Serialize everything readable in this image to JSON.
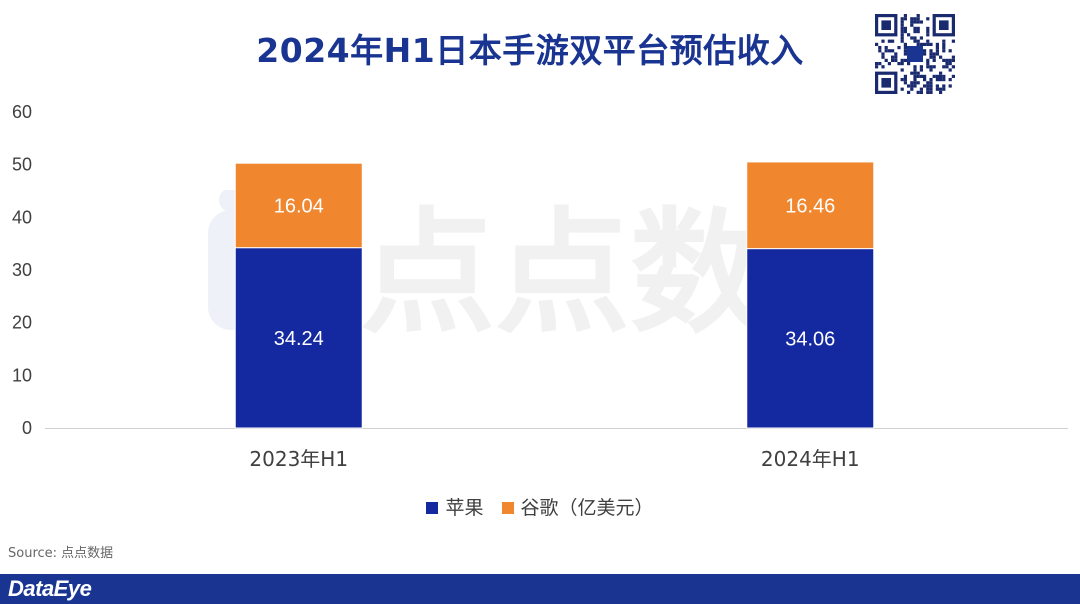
{
  "title": "2024年H1日本手游双平台预估收入",
  "source": "Source: 点点数据",
  "brand": "DataEye",
  "watermark_text": "点点数",
  "chart_data": {
    "type": "bar",
    "stacked": true,
    "categories": [
      "2023年H1",
      "2024年H1"
    ],
    "series": [
      {
        "name": "苹果",
        "values": [
          34.24,
          34.06
        ],
        "color": "#1428a0"
      },
      {
        "name": "谷歌（亿美元）",
        "values": [
          16.04,
          16.46
        ],
        "color": "#f0862e"
      }
    ],
    "ylim": [
      0,
      60
    ],
    "yticks": [
      0,
      10,
      20,
      30,
      40,
      50,
      60
    ],
    "grid": false,
    "legend_position": "bottom"
  },
  "legend": [
    {
      "label": "苹果",
      "color": "#1428a0"
    },
    {
      "label": "谷歌（亿美元）",
      "color": "#f0862e"
    }
  ]
}
